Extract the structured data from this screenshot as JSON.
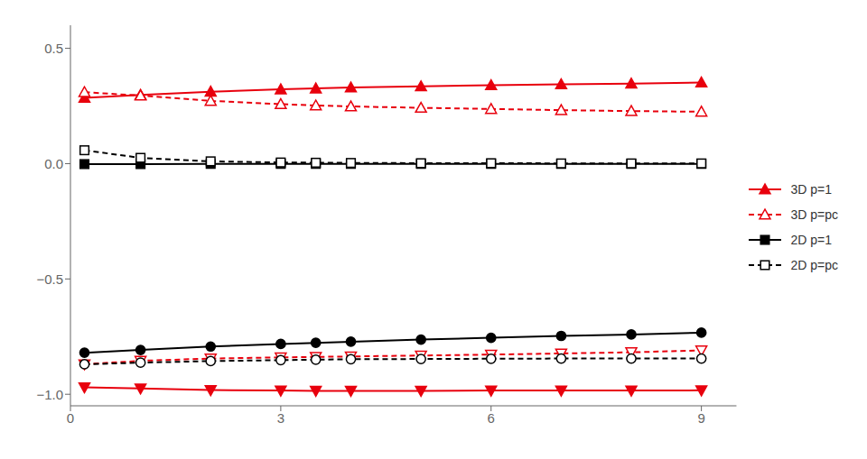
{
  "chart_data": {
    "type": "line",
    "x": [
      0.2,
      1,
      2,
      3,
      3.5,
      4,
      5,
      6,
      7,
      8,
      9
    ],
    "series": [
      {
        "name": "3D p=1",
        "color": "#e8000d",
        "marker": "triangle-up",
        "line_style": "solid",
        "values": [
          0.285,
          0.298,
          0.312,
          0.322,
          0.326,
          0.33,
          0.335,
          0.34,
          0.344,
          0.347,
          0.352
        ]
      },
      {
        "name": "3D p=pc",
        "color": "#e8000d",
        "marker": "triangle-up-open",
        "line_style": "dashed",
        "values": [
          0.31,
          0.295,
          0.272,
          0.258,
          0.252,
          0.248,
          0.242,
          0.237,
          0.232,
          0.228,
          0.225
        ]
      },
      {
        "name": "2D p=1",
        "color": "#000000",
        "marker": "square",
        "line_style": "solid",
        "values": [
          -0.002,
          -0.002,
          -0.001,
          -0.001,
          -0.001,
          -0.001,
          -0.001,
          -0.001,
          -0.001,
          -0.001,
          -0.001
        ]
      },
      {
        "name": "2D p=pc",
        "color": "#000000",
        "marker": "square-open",
        "line_style": "dashed",
        "values": [
          0.058,
          0.025,
          0.01,
          0.005,
          0.004,
          0.003,
          0.002,
          0.002,
          0.001,
          0.001,
          0.001
        ]
      },
      {
        "name": "3D p=1",
        "color": "#e8000d",
        "marker": "triangle-down",
        "line_style": "solid",
        "values": [
          -0.97,
          -0.975,
          -0.982,
          -0.984,
          -0.985,
          -0.985,
          -0.985,
          -0.984,
          -0.984,
          -0.984,
          -0.983
        ]
      },
      {
        "name": "3D p=pc",
        "color": "#e8000d",
        "marker": "triangle-down-open",
        "line_style": "dashed",
        "values": [
          -0.87,
          -0.855,
          -0.845,
          -0.84,
          -0.838,
          -0.836,
          -0.832,
          -0.828,
          -0.823,
          -0.818,
          -0.81
        ]
      },
      {
        "name": "2D p=1",
        "color": "#000000",
        "marker": "circle-open",
        "line_style": "dashed",
        "values": [
          -0.87,
          -0.863,
          -0.856,
          -0.852,
          -0.85,
          -0.848,
          -0.847,
          -0.846,
          -0.845,
          -0.845,
          -0.845
        ]
      },
      {
        "name": "2D p=pc",
        "color": "#000000",
        "marker": "circle",
        "line_style": "solid",
        "values": [
          -0.82,
          -0.808,
          -0.793,
          -0.782,
          -0.777,
          -0.772,
          -0.763,
          -0.755,
          -0.747,
          -0.741,
          -0.733
        ]
      }
    ],
    "xlim": [
      0,
      9.5
    ],
    "xticks": [
      0,
      3,
      6,
      9
    ],
    "ylim": [
      -1.05,
      0.6
    ],
    "yticks": [
      {
        "value": -1.0,
        "label": "−1.0"
      },
      {
        "value": -0.5,
        "label": "−0.5"
      },
      {
        "value": 0.0,
        "label": "0.0"
      },
      {
        "value": 0.5,
        "label": "0.5"
      }
    ],
    "grid": false,
    "legend": "right"
  }
}
